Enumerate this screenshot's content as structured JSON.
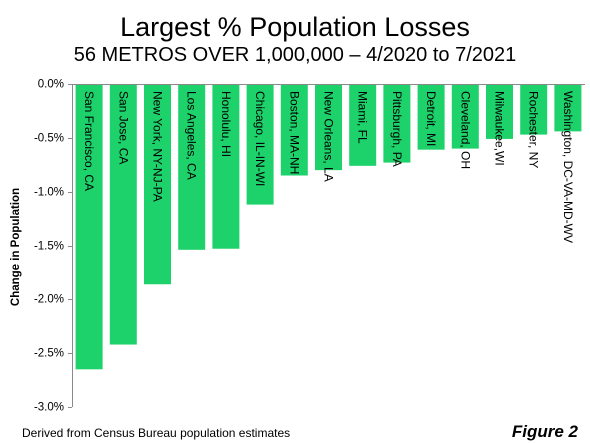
{
  "chart_data": {
    "type": "bar",
    "title": "Largest % Population Losses",
    "subtitle": "56 METROS OVER 1,000,000 – 4/2020 to 7/2021",
    "ylabel": "Change in Population",
    "categories": [
      "San Francisco, CA",
      "San Jose, CA",
      "New York, NY-NJ-PA",
      "Los Angeles, CA",
      "Honolulu, HI",
      "Chicago, IL-IN-WI",
      "Boston, MA-NH",
      "New Orleans, LA",
      "Miami, FL",
      "Pittsburgh, PA",
      "Detroit, MI",
      "Cleveland, OH",
      "Milwaukee,WI",
      "Rochester, NY",
      "Washington, DC-VA-MD-WV"
    ],
    "values": [
      -2.65,
      -2.42,
      -1.86,
      -1.54,
      -1.53,
      -1.12,
      -0.85,
      -0.8,
      -0.76,
      -0.73,
      -0.61,
      -0.6,
      -0.51,
      -0.47,
      -0.44
    ],
    "ylim": [
      -3.0,
      0.0
    ],
    "yticks": [
      0.0,
      -0.5,
      -1.0,
      -1.5,
      -2.0,
      -2.5,
      -3.0
    ],
    "ytick_labels": [
      "0.0%",
      "-0.5%",
      "-1.0%",
      "-1.5%",
      "-2.0%",
      "-2.5%",
      "-3.0%"
    ],
    "grid": false,
    "bar_color": "#1DD16B"
  },
  "footer": {
    "source": "Derived from Census Bureau population estimates",
    "figure_label": "Figure 2"
  }
}
